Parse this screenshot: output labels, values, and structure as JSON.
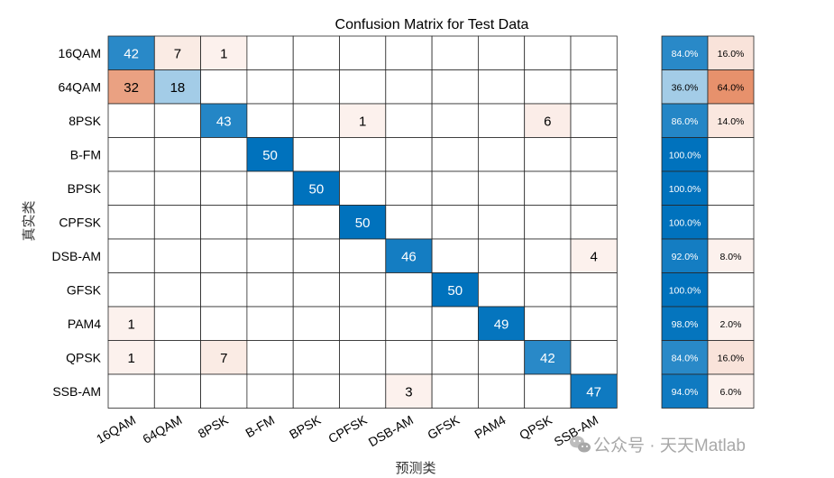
{
  "chart_data": {
    "type": "heatmap",
    "title": "Confusion Matrix for Test Data",
    "xlabel": "预测类",
    "ylabel": "真实类",
    "classes": [
      "16QAM",
      "64QAM",
      "8PSK",
      "B-FM",
      "BPSK",
      "CPFSK",
      "DSB-AM",
      "GFSK",
      "PAM4",
      "QPSK",
      "SSB-AM"
    ],
    "matrix": [
      [
        42,
        7,
        1,
        0,
        0,
        0,
        0,
        0,
        0,
        0,
        0
      ],
      [
        32,
        18,
        0,
        0,
        0,
        0,
        0,
        0,
        0,
        0,
        0
      ],
      [
        0,
        0,
        43,
        0,
        0,
        1,
        0,
        0,
        0,
        6,
        0
      ],
      [
        0,
        0,
        0,
        50,
        0,
        0,
        0,
        0,
        0,
        0,
        0
      ],
      [
        0,
        0,
        0,
        0,
        50,
        0,
        0,
        0,
        0,
        0,
        0
      ],
      [
        0,
        0,
        0,
        0,
        0,
        50,
        0,
        0,
        0,
        0,
        0
      ],
      [
        0,
        0,
        0,
        0,
        0,
        0,
        46,
        0,
        0,
        0,
        4
      ],
      [
        0,
        0,
        0,
        0,
        0,
        0,
        0,
        50,
        0,
        0,
        0
      ],
      [
        1,
        0,
        0,
        0,
        0,
        0,
        0,
        0,
        49,
        0,
        0
      ],
      [
        1,
        0,
        7,
        0,
        0,
        0,
        0,
        0,
        0,
        42,
        0
      ],
      [
        0,
        0,
        0,
        0,
        0,
        0,
        3,
        0,
        0,
        0,
        47
      ]
    ],
    "row_summary": [
      [
        "84.0%",
        "16.0%"
      ],
      [
        "36.0%",
        "64.0%"
      ],
      [
        "86.0%",
        "14.0%"
      ],
      [
        "100.0%",
        ""
      ],
      [
        "100.0%",
        ""
      ],
      [
        "100.0%",
        ""
      ],
      [
        "92.0%",
        "8.0%"
      ],
      [
        "100.0%",
        ""
      ],
      [
        "98.0%",
        "2.0%"
      ],
      [
        "84.0%",
        "16.0%"
      ],
      [
        "94.0%",
        "6.0%"
      ]
    ],
    "colors": {
      "diagonal": "#0072bd",
      "off_diagonal": "#d95319",
      "background": "#ffffff"
    }
  },
  "watermark": {
    "icon": "wechat-icon",
    "text": "公众号 · 天天Matlab"
  }
}
